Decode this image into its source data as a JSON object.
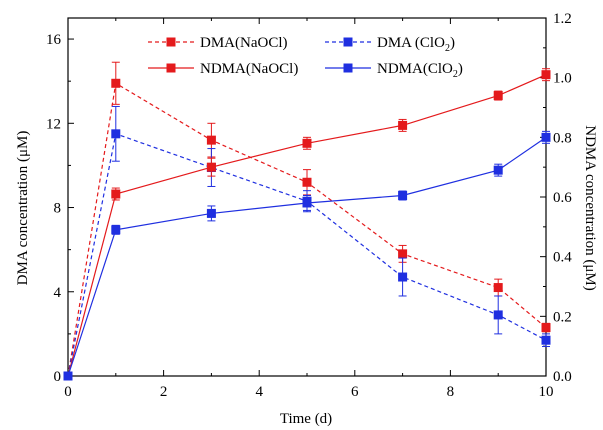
{
  "chart_data": {
    "type": "line",
    "xlabel": "Time (d)",
    "ylabel_left": "DMA concentration (μM)",
    "ylabel_right": "NDMA concentration (μM)",
    "xlim": [
      0,
      10
    ],
    "ylim_left": [
      0,
      17
    ],
    "ylim_right": [
      0,
      1.2
    ],
    "x_ticks": [
      "0",
      "2",
      "4",
      "6",
      "8",
      "10"
    ],
    "y_left_ticks": [
      "0",
      "4",
      "8",
      "12",
      "16"
    ],
    "y_right_ticks": [
      "0.0",
      "0.2",
      "0.4",
      "0.6",
      "0.8",
      "1.0",
      "1.2"
    ],
    "grid": false,
    "legend_position": "top",
    "series": [
      {
        "name": "DMA(NaOCl)",
        "axis": "left",
        "color": "#e41a1c",
        "line_style": "dashed",
        "marker": "square",
        "x": [
          0,
          1,
          3,
          5,
          7,
          9,
          10
        ],
        "y": [
          0,
          13.9,
          11.2,
          9.2,
          5.8,
          4.2,
          2.3
        ],
        "error": [
          0,
          1.0,
          0.8,
          0.6,
          0.4,
          0.4,
          0.2
        ]
      },
      {
        "name": "DMA (ClO2)",
        "legend_label": "DMA (ClO",
        "legend_sub": "2",
        "legend_suffix": ")",
        "axis": "left",
        "color": "#1f2fe0",
        "line_style": "dashed",
        "marker": "square",
        "x": [
          0,
          1,
          3,
          5,
          7,
          9,
          10
        ],
        "y": [
          0,
          11.5,
          9.9,
          8.3,
          4.7,
          2.9,
          1.7
        ],
        "error": [
          0,
          1.3,
          0.9,
          0.5,
          0.9,
          0.9,
          0.3
        ]
      },
      {
        "name": "NDMA(NaOCl)",
        "axis": "right",
        "color": "#e41a1c",
        "line_style": "solid",
        "marker": "square",
        "x": [
          0,
          1,
          3,
          5,
          7,
          9,
          10
        ],
        "y": [
          0,
          0.61,
          0.7,
          0.78,
          0.84,
          0.94,
          1.01
        ],
        "error": [
          0,
          0.02,
          0.03,
          0.02,
          0.02,
          0.015,
          0.02
        ]
      },
      {
        "name": "NDMA(ClO2)",
        "legend_label": "NDMA(ClO",
        "legend_sub": "2",
        "legend_suffix": ")",
        "axis": "right",
        "color": "#1f2fe0",
        "line_style": "solid",
        "marker": "square",
        "x": [
          0,
          1,
          3,
          5,
          7,
          9,
          10
        ],
        "y": [
          0,
          0.49,
          0.545,
          0.58,
          0.605,
          0.69,
          0.8
        ],
        "error": [
          0,
          0.015,
          0.025,
          0.025,
          0.015,
          0.02,
          0.02
        ]
      }
    ]
  }
}
